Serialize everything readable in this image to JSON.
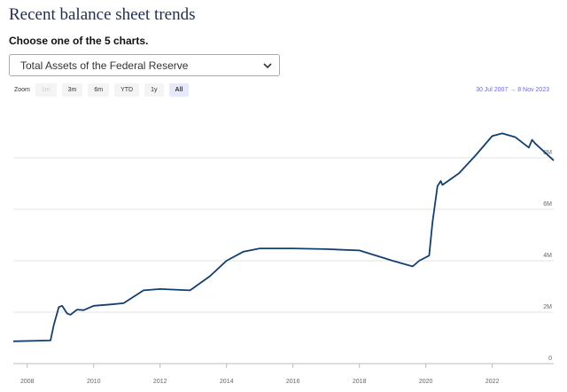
{
  "header": {
    "title": "Recent balance sheet trends",
    "subtitle": "Choose one of the 5 charts."
  },
  "select": {
    "value": "Total Assets of the Federal Reserve"
  },
  "zoom": {
    "label": "Zoom",
    "buttons": [
      "1m",
      "3m",
      "6m",
      "YTD",
      "1y",
      "All"
    ],
    "selected": "All",
    "disabled": "1m"
  },
  "range": {
    "from": "30 Jul 2007",
    "separator": "→",
    "to": "8 Nov 2023"
  },
  "chart_data": {
    "type": "line",
    "color": "#123f6d",
    "grid": true,
    "x": [
      2007.58,
      2008.7,
      2008.8,
      2008.95,
      2009.05,
      2009.2,
      2009.3,
      2009.5,
      2009.7,
      2010.0,
      2010.5,
      2010.9,
      2011.5,
      2012.0,
      2012.9,
      2013.5,
      2014.0,
      2014.5,
      2015.0,
      2016.0,
      2017.0,
      2018.0,
      2019.0,
      2019.6,
      2019.8,
      2020.1,
      2020.2,
      2020.35,
      2020.45,
      2020.5,
      2021.0,
      2021.5,
      2022.0,
      2022.3,
      2022.7,
      2023.1,
      2023.2,
      2023.3,
      2023.85
    ],
    "series": [
      {
        "name": "Total Assets of the Federal Reserve",
        "values": [
          870000,
          900000,
          1500000,
          2200000,
          2250000,
          1950000,
          1900000,
          2100000,
          2080000,
          2250000,
          2300000,
          2350000,
          2850000,
          2900000,
          2850000,
          3400000,
          4000000,
          4350000,
          4480000,
          4480000,
          4450000,
          4400000,
          4000000,
          3780000,
          4000000,
          4200000,
          5500000,
          6900000,
          7100000,
          6950000,
          7400000,
          8100000,
          8850000,
          8950000,
          8800000,
          8400000,
          8700000,
          8550000,
          7900000
        ]
      }
    ],
    "xlim": [
      2007.58,
      2023.85
    ],
    "xticks": [
      2008,
      2010,
      2012,
      2014,
      2016,
      2018,
      2020,
      2022
    ],
    "ylim": [
      0,
      10000000
    ],
    "yticks": [
      0,
      {
        "value": 2000000,
        "label": "2M"
      },
      {
        "value": 4000000,
        "label": "4M"
      },
      {
        "value": 6000000,
        "label": "6M"
      },
      {
        "value": 8000000,
        "label": "8M"
      }
    ]
  }
}
